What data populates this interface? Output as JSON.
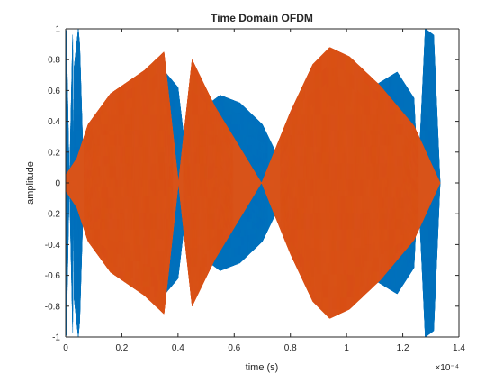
{
  "chart_data": {
    "type": "line",
    "title": "Time Domain OFDM",
    "xlabel": "time (s)",
    "ylabel": "amplitude",
    "x_exponent_label": "×10⁻⁴",
    "x_exponent": -4,
    "xlim": [
      0,
      0.00014
    ],
    "ylim": [
      -1,
      1
    ],
    "x_ticks": [
      0,
      0.2,
      0.4,
      0.6,
      0.8,
      1,
      1.2,
      1.4
    ],
    "y_ticks": [
      -1,
      -0.8,
      -0.6,
      -0.4,
      -0.2,
      0,
      0.2,
      0.4,
      0.6,
      0.8,
      1
    ],
    "grid": false,
    "legend": "none",
    "series": [
      {
        "color": "#0072BD",
        "carrier_frequency_hz": 50000000,
        "envelope_points": [
          [
            0,
            1
          ],
          [
            3e-07,
            0.98
          ],
          [
            1e-06,
            0.3
          ],
          [
            2.5e-06,
            -0.97
          ],
          [
            3e-06,
            0.75
          ],
          [
            4.5e-06,
            1
          ],
          [
            5e-06,
            0.9
          ],
          [
            7e-06,
            -0.3
          ],
          [
            9e-06,
            -0.32
          ],
          [
            1.1e-05,
            -0.2
          ],
          [
            1.6e-05,
            -0.55
          ],
          [
            2.2e-05,
            -0.65
          ],
          [
            2.8e-05,
            -0.72
          ],
          [
            3.4e-05,
            -0.75
          ],
          [
            4e-05,
            -0.62
          ],
          [
            4.7e-05,
            0.46
          ],
          [
            5.5e-05,
            0.57
          ],
          [
            6.2e-05,
            0.52
          ],
          [
            7e-05,
            0.38
          ],
          [
            7.9e-05,
            0.04
          ],
          [
            9e-05,
            -0.08
          ],
          [
            0.0001,
            -0.3
          ],
          [
            0.000109,
            -0.62
          ],
          [
            0.000118,
            -0.72
          ],
          [
            0.000124,
            -0.55
          ],
          [
            0.000128,
            1
          ],
          [
            0.000131,
            0.96
          ],
          [
            0.0001333,
            0
          ]
        ]
      },
      {
        "color": "#D95319",
        "carrier_frequency_hz": 50000000,
        "envelope_points": [
          [
            0,
            0.05
          ],
          [
            4e-06,
            0.16
          ],
          [
            8e-06,
            0.38
          ],
          [
            1.6e-05,
            0.58
          ],
          [
            2.8e-05,
            0.73
          ],
          [
            3.5e-05,
            0.85
          ],
          [
            4.5e-05,
            -0.8
          ],
          [
            5.3e-05,
            -0.5
          ],
          [
            7e-05,
            0.01
          ],
          [
            8e-05,
            0.46
          ],
          [
            8.8e-05,
            0.77
          ],
          [
            9.4e-05,
            0.88
          ],
          [
            0.000101,
            0.82
          ],
          [
            0.000112,
            0.63
          ],
          [
            0.000124,
            0.37
          ],
          [
            0.0001333,
            0
          ]
        ]
      }
    ]
  }
}
